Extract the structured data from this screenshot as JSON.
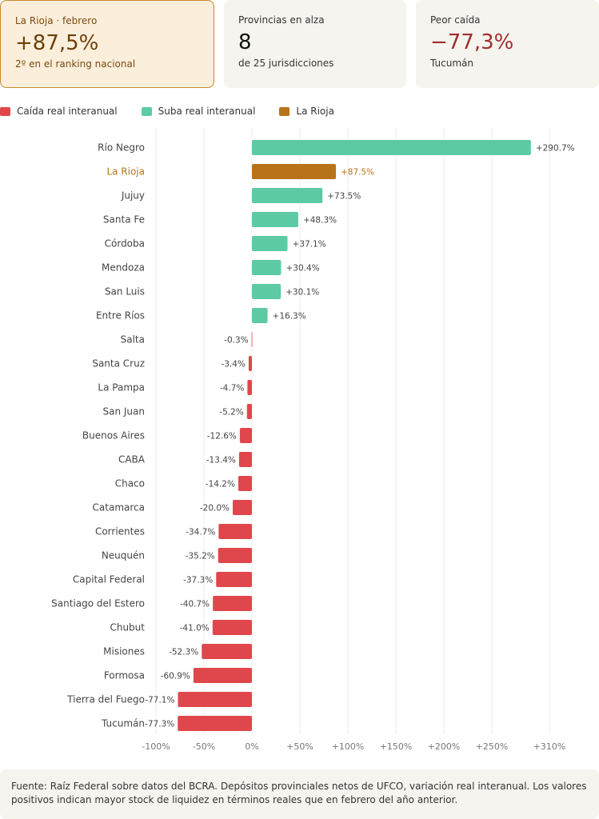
{
  "cards": [
    {
      "label": "La Rioja · febrero",
      "value": "+87,5%",
      "sub": "2º en el ranking nacional"
    },
    {
      "label": "Provincias en alza",
      "value": "8",
      "sub": "de 25 jurisdicciones"
    },
    {
      "label": "Peor caída",
      "value": "−77,3%",
      "sub": "Tucumán"
    }
  ],
  "legend": [
    {
      "label": "Caída real interanual",
      "color": "#e0474c"
    },
    {
      "label": "Suba real interanual",
      "color": "#5ccba4"
    },
    {
      "label": "La Rioja",
      "color": "#b87319"
    }
  ],
  "chart_data": {
    "type": "bar",
    "orientation": "horizontal",
    "highlight": "La Rioja",
    "colors": {
      "negative": "#e0474c",
      "positive": "#5ccba4",
      "highlight": "#b87319",
      "highlight_text": "#b87319"
    },
    "categories": [
      "Río Negro",
      "La Rioja",
      "Jujuy",
      "Santa Fe",
      "Córdoba",
      "Mendoza",
      "San Luis",
      "Entre Ríos",
      "Salta",
      "Santa Cruz",
      "La Pampa",
      "San Juan",
      "Buenos Aires",
      "CABA",
      "Chaco",
      "Catamarca",
      "Corrientes",
      "Neuquén",
      "Capital Federal",
      "Santiago del Estero",
      "Chubut",
      "Misiones",
      "Formosa",
      "Tierra del Fuego",
      "Tucumán"
    ],
    "values": [
      290.7,
      87.5,
      73.5,
      48.3,
      37.1,
      30.4,
      30.1,
      16.3,
      -0.3,
      -3.4,
      -4.7,
      -5.2,
      -12.6,
      -13.4,
      -14.2,
      -20.0,
      -34.7,
      -35.2,
      -37.3,
      -40.7,
      -41.0,
      -52.3,
      -60.9,
      -77.1,
      -77.3
    ],
    "value_labels": [
      "+290.7%",
      "+87.5%",
      "+73.5%",
      "+48.3%",
      "+37.1%",
      "+30.4%",
      "+30.1%",
      "+16.3%",
      "-0.3%",
      "-3.4%",
      "-4.7%",
      "-5.2%",
      "-12.6%",
      "-13.4%",
      "-14.2%",
      "-20.0%",
      "-34.7%",
      "-35.2%",
      "-37.3%",
      "-40.7%",
      "-41.0%",
      "-52.3%",
      "-60.9%",
      "-77.1%",
      "-77.3%"
    ],
    "xlim": [
      -100,
      310
    ],
    "xticks": [
      -100,
      -50,
      0,
      50,
      100,
      150,
      200,
      250,
      310
    ],
    "xtick_labels": [
      "-100%",
      "-50%",
      "0%",
      "+50%",
      "+100%",
      "+150%",
      "+200%",
      "+250%",
      "+310%"
    ],
    "grid": true,
    "xlabel": "",
    "ylabel": ""
  },
  "footer": {
    "text": "Fuente: Raíz Federal sobre datos del BCRA. Depósitos provinciales netos de UFCO, variación real interanual. Los valores positivos indican mayor stock de liquidez en términos reales que en febrero del año anterior."
  }
}
